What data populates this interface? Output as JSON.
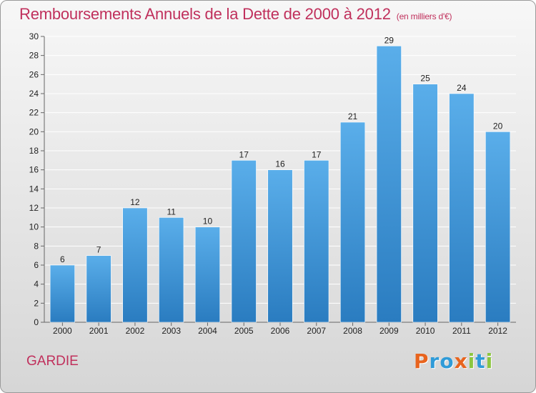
{
  "chart_data": {
    "type": "bar",
    "title": "Remboursements Annuels de la Dette de 2000 à 2012",
    "subtitle": "(en milliers d'€)",
    "categories": [
      "2000",
      "2001",
      "2002",
      "2003",
      "2004",
      "2005",
      "2006",
      "2007",
      "2008",
      "2009",
      "2010",
      "2011",
      "2012"
    ],
    "values": [
      6,
      7,
      12,
      11,
      10,
      17,
      16,
      17,
      21,
      29,
      25,
      24,
      20
    ],
    "ylim": [
      0,
      30
    ],
    "yticks": [
      0,
      2,
      4,
      6,
      8,
      10,
      12,
      14,
      16,
      18,
      20,
      22,
      24,
      26,
      28,
      30
    ],
    "grid": true,
    "bar_color": "#3a8fd6"
  },
  "commune": "GARDIE",
  "logo": {
    "letters": [
      "P",
      "r",
      "o",
      "x",
      "i",
      "t",
      "i"
    ],
    "colors": [
      "#e8641e",
      "#2f9bd8",
      "#2f9bd8",
      "#e8641e",
      "#8cc63f",
      "#2f9bd8",
      "#8cc63f"
    ]
  }
}
